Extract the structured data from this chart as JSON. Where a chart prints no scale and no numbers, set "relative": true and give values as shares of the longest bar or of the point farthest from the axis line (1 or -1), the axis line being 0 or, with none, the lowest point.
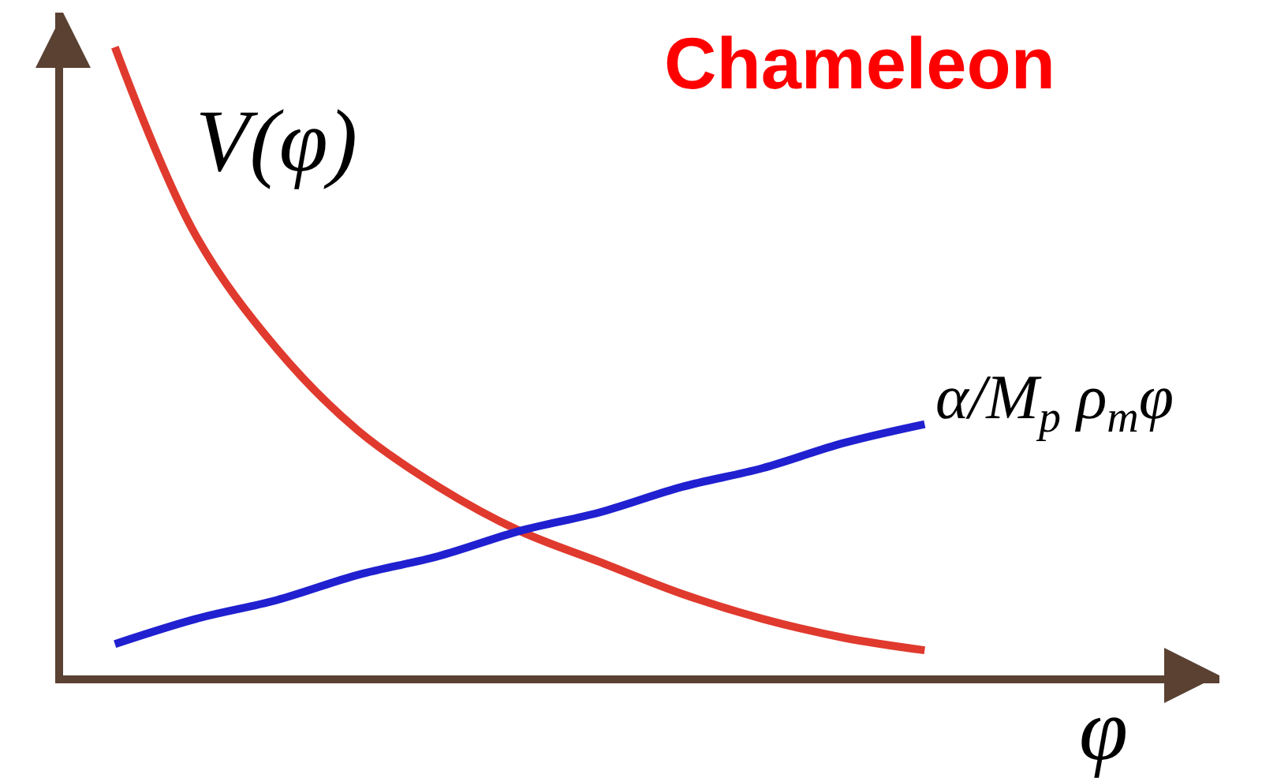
{
  "chart_data": {
    "type": "line",
    "title": "Chameleon",
    "xlabel": "φ",
    "relative": true,
    "legend": false,
    "categories": [
      null,
      null,
      null,
      null,
      null,
      null,
      null,
      null,
      null,
      null,
      null
    ],
    "series": [
      {
        "name": "V(φ)",
        "color": "#e03a2e",
        "values": [
          1.0,
          0.7,
          0.52,
          0.39,
          0.3,
          0.23,
          0.18,
          0.13,
          0.09,
          0.06,
          0.04
        ]
      },
      {
        "name": "α/M$_{p}$ ρ$_{m}$φ",
        "color": "#2020d0",
        "values": [
          0.05,
          0.09,
          0.12,
          0.16,
          0.19,
          0.23,
          0.26,
          0.3,
          0.33,
          0.37,
          0.4
        ]
      }
    ]
  }
}
